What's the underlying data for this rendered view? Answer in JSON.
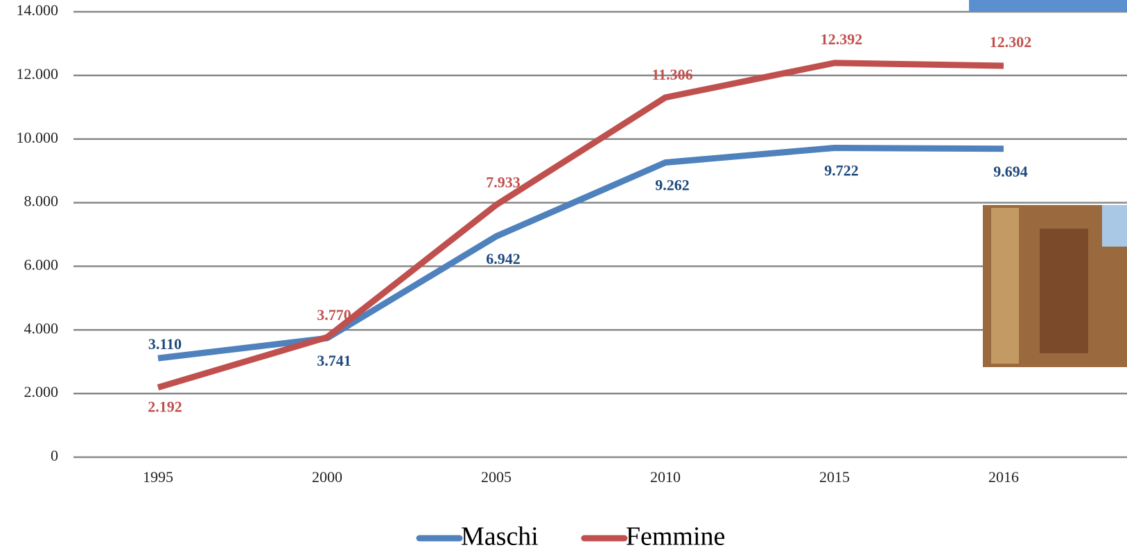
{
  "chart_data": {
    "type": "line",
    "categories": [
      "1995",
      "2000",
      "2005",
      "2010",
      "2015",
      "2016"
    ],
    "series": [
      {
        "name": "Maschi",
        "color": "#4f81bd",
        "label_color": "#1f497d",
        "values": [
          3110,
          3741,
          6942,
          9262,
          9722,
          9694
        ],
        "value_labels": [
          "3.110",
          "3.741",
          "6.942",
          "9.262",
          "9.722",
          "9.694"
        ]
      },
      {
        "name": "Femmine",
        "color": "#c0504d",
        "label_color": "#c0504d",
        "values": [
          2192,
          3770,
          7933,
          11306,
          12392,
          12302
        ],
        "value_labels": [
          "2.192",
          "3.770",
          "7.933",
          "11.306",
          "12.392",
          "12.302"
        ]
      }
    ],
    "ylim": [
      0,
      14000
    ],
    "yticks": [
      0,
      {
        "value": 2000,
        "label": "2.000"
      },
      {
        "value": 4000,
        "label": "4.000"
      },
      {
        "value": 6000,
        "label": "6.000"
      },
      {
        "value": 8000,
        "label": "8.000"
      },
      {
        "value": 10000,
        "label": "10.000"
      },
      {
        "value": 12000,
        "label": "12.000"
      },
      {
        "value": 14000,
        "label": "14.000"
      }
    ],
    "grid": true,
    "legend": "bottom"
  }
}
